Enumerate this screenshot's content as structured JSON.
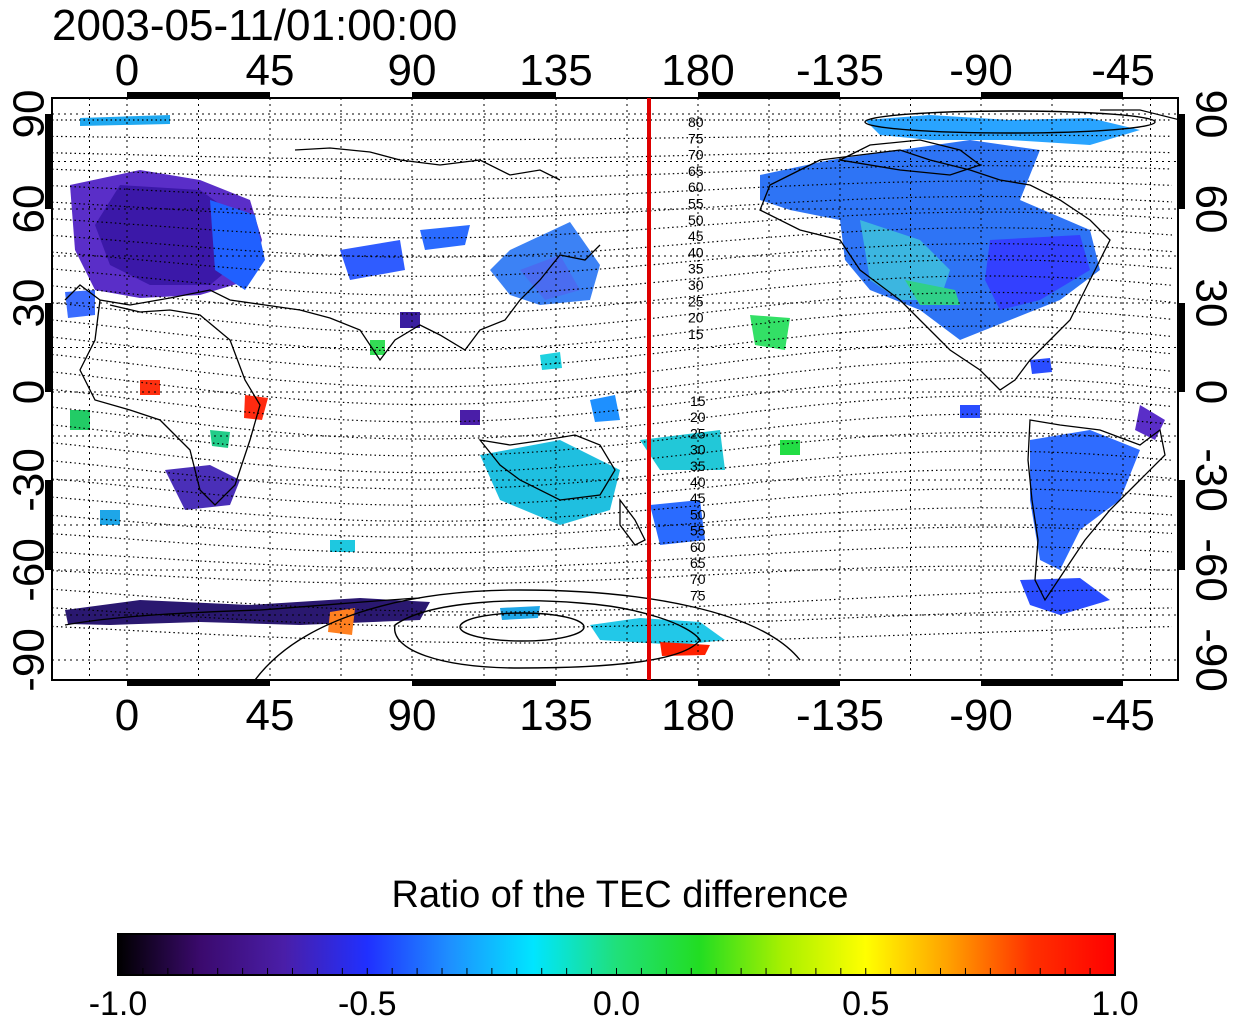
{
  "title": "2003-05-11/01:00:00",
  "map": {
    "lon_labels": [
      "0",
      "45",
      "90",
      "135",
      "180",
      "-135",
      "-90",
      "-45"
    ],
    "lat_labels_left": [
      "90",
      "60",
      "30",
      "0",
      "-30",
      "-60",
      "-90"
    ],
    "lat_labels_right": [
      "90",
      "60",
      "30",
      "0",
      "-30",
      "-60",
      "-90"
    ],
    "contour_labels_upper": [
      "80",
      "75",
      "70",
      "65",
      "60",
      "55",
      "50",
      "45",
      "40",
      "35",
      "30",
      "25",
      "20",
      "15"
    ],
    "contour_labels_lower": [
      "15",
      "20",
      "25",
      "30",
      "35",
      "40",
      "45",
      "50",
      "55",
      "60",
      "65",
      "70",
      "75"
    ],
    "marker_line_color": "#dd0000"
  },
  "colorbar": {
    "title": "Ratio of the TEC difference",
    "ticks": [
      "-1.0",
      "-0.5",
      "0.0",
      "0.5",
      "1.0"
    ],
    "colormap": [
      "#000000",
      "#3b0a6e",
      "#4a1ea8",
      "#2030ff",
      "#1e90ff",
      "#00e5ff",
      "#20e07a",
      "#22dd22",
      "#a8f000",
      "#ffff00",
      "#ffa000",
      "#ff3000",
      "#ff0000"
    ]
  }
}
